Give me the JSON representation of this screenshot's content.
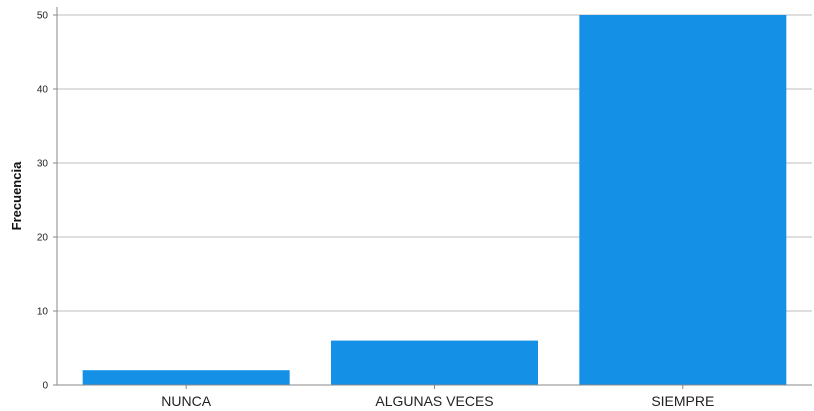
{
  "chart_data": {
    "type": "bar",
    "categories": [
      "NUNCA",
      "ALGUNAS VECES",
      "SIEMPRE"
    ],
    "values": [
      2,
      6,
      50
    ],
    "title": "",
    "xlabel": "",
    "ylabel": "Frecuencia",
    "ylim": [
      0,
      50
    ],
    "yticks": [
      0,
      10,
      20,
      30,
      40,
      50
    ],
    "grid": true,
    "legend": "none",
    "bar_color": "#1490E6"
  }
}
